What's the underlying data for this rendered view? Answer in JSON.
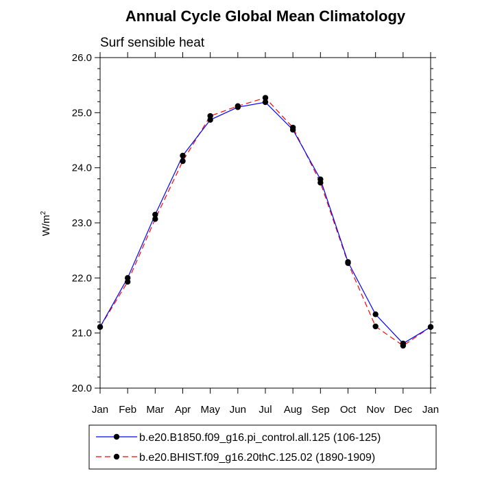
{
  "chart_data": {
    "type": "line",
    "title": "Annual Cycle Global Mean Climatology",
    "subtitle": "Surf sensible heat",
    "ylabel": "W/m",
    "ylabel_superscript": "2",
    "xlabel": "",
    "categories": [
      "Jan",
      "Feb",
      "Mar",
      "Apr",
      "May",
      "Jun",
      "Jul",
      "Aug",
      "Sep",
      "Oct",
      "Nov",
      "Dec",
      "Jan"
    ],
    "ylim": [
      20.0,
      26.0
    ],
    "yticks": [
      "20.0",
      "21.0",
      "22.0",
      "23.0",
      "24.0",
      "25.0",
      "26.0"
    ],
    "grid": false,
    "legend_position": "bottom",
    "series": [
      {
        "name": "b.e20.B1850.f09_g16.pi_control.all.125 (106-125)",
        "color": "#0000ff",
        "line_style": "solid",
        "marker": "filled-circle",
        "values": [
          21.11,
          22.0,
          23.15,
          24.22,
          24.87,
          25.1,
          25.19,
          24.69,
          23.79,
          22.29,
          21.34,
          20.81,
          21.11
        ]
      },
      {
        "name": "b.e20.BHIST.f09_g16.20thC.125.02 (1890-1909)",
        "color": "#ff0000",
        "line_style": "dashed",
        "marker": "filled-circle",
        "values": [
          21.11,
          21.93,
          23.07,
          24.12,
          24.94,
          25.12,
          25.27,
          24.73,
          23.73,
          22.27,
          21.12,
          20.77,
          21.11
        ]
      }
    ]
  }
}
